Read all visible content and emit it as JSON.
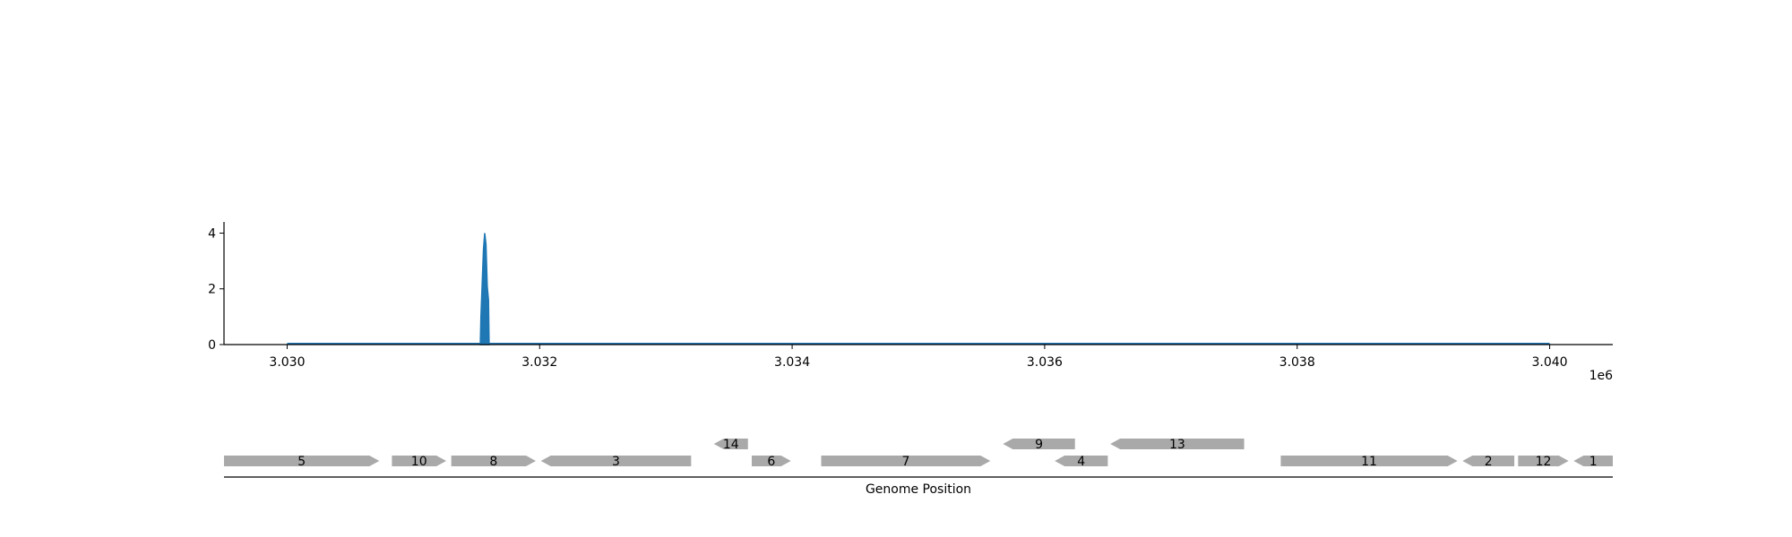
{
  "chart_data": [
    {
      "type": "area",
      "title": "",
      "xlabel": "",
      "ylabel": "",
      "x_offset_label": "1e6",
      "xlim": [
        3029500,
        3040500
      ],
      "ylim": [
        0,
        4.4
      ],
      "x_ticks": [
        3030000,
        3032000,
        3034000,
        3036000,
        3038000,
        3040000
      ],
      "x_tick_labels": [
        "3.030",
        "3.032",
        "3.034",
        "3.036",
        "3.038",
        "3.040"
      ],
      "y_ticks": [
        0,
        2,
        4
      ],
      "y_tick_labels": [
        "0",
        "2",
        "4"
      ],
      "grid": false,
      "legend": "none",
      "color": "#1f77b4",
      "x_range": [
        3030000,
        3040000
      ],
      "peaks": [
        {
          "x": 3031535,
          "y": 1.0
        },
        {
          "x": 3031545,
          "y": 2.2
        },
        {
          "x": 3031555,
          "y": 3.4
        },
        {
          "x": 3031565,
          "y": 4.0
        },
        {
          "x": 3031575,
          "y": 3.6
        },
        {
          "x": 3031585,
          "y": 2.1
        },
        {
          "x": 3031595,
          "y": 1.6
        }
      ],
      "peak_range": [
        3031530,
        3031600
      ]
    },
    {
      "type": "gene-track",
      "xlabel": "Genome Position",
      "xlim": [
        3029500,
        3040500
      ],
      "color": "#a9a9a9",
      "features": [
        {
          "label": "5",
          "start": 3029500,
          "end": 3030730,
          "strand": "+",
          "row": 0
        },
        {
          "label": "10",
          "start": 3030830,
          "end": 3031260,
          "strand": "+",
          "row": 0
        },
        {
          "label": "8",
          "start": 3031300,
          "end": 3031970,
          "strand": "+",
          "row": 0
        },
        {
          "label": "3",
          "start": 3032010,
          "end": 3033200,
          "strand": "-",
          "row": 0
        },
        {
          "label": "14",
          "start": 3033380,
          "end": 3033650,
          "strand": "-",
          "row": 1
        },
        {
          "label": "6",
          "start": 3033680,
          "end": 3033990,
          "strand": "+",
          "row": 0
        },
        {
          "label": "7",
          "start": 3034230,
          "end": 3035570,
          "strand": "+",
          "row": 0
        },
        {
          "label": "9",
          "start": 3035670,
          "end": 3036240,
          "strand": "-",
          "row": 1
        },
        {
          "label": "4",
          "start": 3036080,
          "end": 3036500,
          "strand": "-",
          "row": 0
        },
        {
          "label": "13",
          "start": 3036520,
          "end": 3037580,
          "strand": "-",
          "row": 1
        },
        {
          "label": "11",
          "start": 3037870,
          "end": 3039270,
          "strand": "+",
          "row": 0
        },
        {
          "label": "2",
          "start": 3039310,
          "end": 3039720,
          "strand": "-",
          "row": 0
        },
        {
          "label": "12",
          "start": 3039750,
          "end": 3040150,
          "strand": "+",
          "row": 0
        },
        {
          "label": "1",
          "start": 3040190,
          "end": 3040500,
          "strand": "-",
          "row": 0
        }
      ]
    }
  ]
}
